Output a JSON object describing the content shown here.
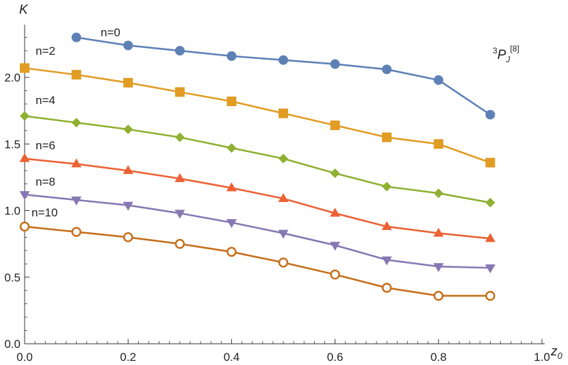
{
  "chart_data": {
    "type": "line",
    "title": "",
    "xlabel": "z",
    "xlabel_sub": "0",
    "ylabel": "K",
    "xlim": [
      0,
      1.0
    ],
    "ylim": [
      0,
      2.35
    ],
    "x_ticks": [
      "0.0",
      "0.2",
      "0.4",
      "0.6",
      "0.8",
      "1.0"
    ],
    "y_ticks": [
      "0.0",
      "0.5",
      "1.0",
      "1.5",
      "2.0"
    ],
    "annotation": {
      "sup": "3",
      "main": "P",
      "sub": "J",
      "sup2": "[8]"
    },
    "series": [
      {
        "name": "n=0",
        "marker": "circle",
        "color": "#5e81b5",
        "x": [
          0.1,
          0.2,
          0.3,
          0.4,
          0.5,
          0.6,
          0.7,
          0.8,
          0.9
        ],
        "y": [
          2.3,
          2.24,
          2.2,
          2.16,
          2.13,
          2.1,
          2.06,
          1.98,
          1.72
        ]
      },
      {
        "name": "n=2",
        "marker": "square",
        "color": "#e19c24",
        "x": [
          0.0,
          0.1,
          0.2,
          0.3,
          0.4,
          0.5,
          0.6,
          0.7,
          0.8,
          0.9
        ],
        "y": [
          2.07,
          2.02,
          1.96,
          1.89,
          1.82,
          1.73,
          1.64,
          1.55,
          1.5,
          1.36
        ]
      },
      {
        "name": "n=4",
        "marker": "diamond",
        "color": "#8fb032",
        "x": [
          0.0,
          0.1,
          0.2,
          0.3,
          0.4,
          0.5,
          0.6,
          0.7,
          0.8,
          0.9
        ],
        "y": [
          1.71,
          1.66,
          1.61,
          1.55,
          1.47,
          1.39,
          1.28,
          1.18,
          1.13,
          1.06
        ]
      },
      {
        "name": "n=6",
        "marker": "triangle-up",
        "color": "#eb6235",
        "x": [
          0.0,
          0.1,
          0.2,
          0.3,
          0.4,
          0.5,
          0.6,
          0.7,
          0.8,
          0.9
        ],
        "y": [
          1.39,
          1.35,
          1.3,
          1.24,
          1.17,
          1.09,
          0.98,
          0.88,
          0.83,
          0.79
        ]
      },
      {
        "name": "n=8",
        "marker": "triangle-down",
        "color": "#8778b3",
        "x": [
          0.0,
          0.1,
          0.2,
          0.3,
          0.4,
          0.5,
          0.6,
          0.7,
          0.8,
          0.9
        ],
        "y": [
          1.12,
          1.08,
          1.04,
          0.98,
          0.91,
          0.83,
          0.74,
          0.63,
          0.58,
          0.57
        ]
      },
      {
        "name": "n=10",
        "marker": "open-circle",
        "color": "#c56e1a",
        "x": [
          0.0,
          0.1,
          0.2,
          0.3,
          0.4,
          0.5,
          0.6,
          0.7,
          0.8,
          0.9
        ],
        "y": [
          0.88,
          0.84,
          0.8,
          0.75,
          0.69,
          0.61,
          0.52,
          0.42,
          0.36,
          0.36
        ]
      }
    ]
  }
}
